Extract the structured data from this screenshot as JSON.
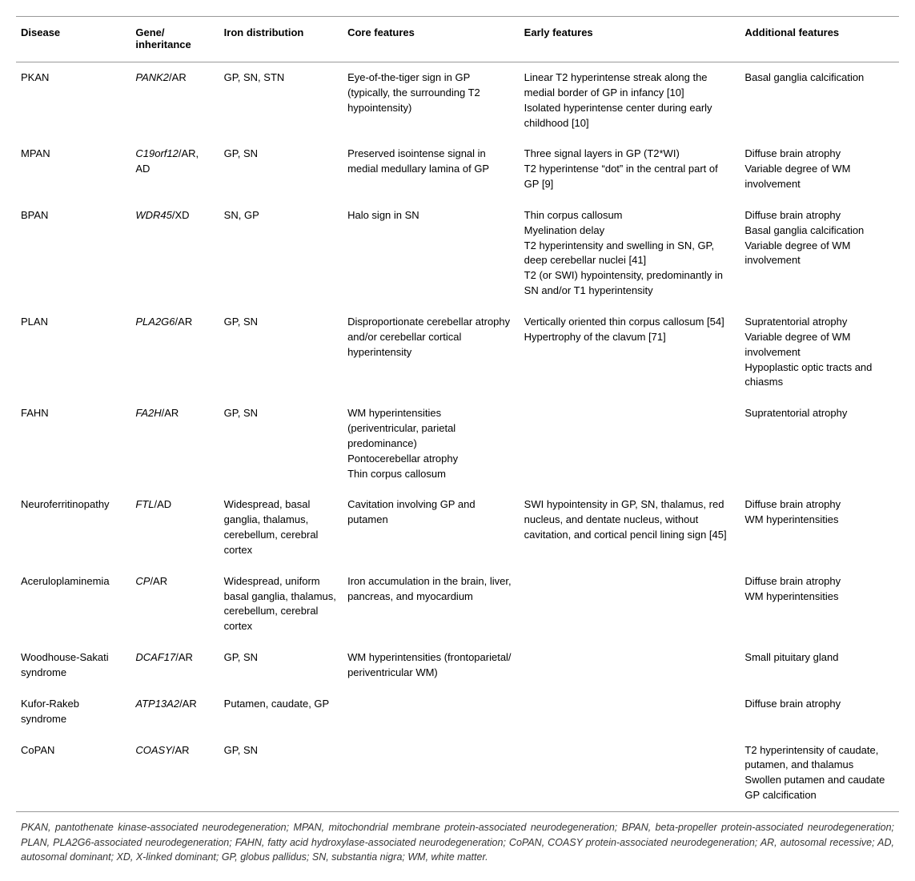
{
  "columns": [
    "Disease",
    "Gene/\ninheritance",
    "Iron distribution",
    "Core features",
    "Early features",
    "Additional features"
  ],
  "rows": [
    {
      "disease": "PKAN",
      "gene_html": "<i>PANK2</i>/AR",
      "iron": "GP, SN, STN",
      "core": "Eye-of-the-tiger sign in GP (typically, the surrounding T2 hypointensity)",
      "early": "Linear T2 hyperintense streak along the medial border of GP in infancy [10]\nIsolated hyperintense center during early childhood [10]",
      "additional": "Basal ganglia calcification"
    },
    {
      "disease": "MPAN",
      "gene_html": "<i>C19orf12</i>/AR, AD",
      "iron": "GP, SN",
      "core": "Preserved isointense signal in medial medullary lamina of GP",
      "early": "Three signal layers in GP (T2*WI)\nT2 hyperintense “dot” in the central part of GP [9]",
      "additional": "Diffuse brain atrophy\nVariable degree of WM involvement"
    },
    {
      "disease": "BPAN",
      "gene_html": "<i>WDR45</i>/XD",
      "iron": "SN, GP",
      "core": "Halo sign in SN",
      "early": "Thin corpus callosum\nMyelination delay\nT2 hyperintensity and swelling in SN, GP, deep cerebellar nuclei [41]\nT2 (or SWI) hypointensity, predominantly in SN and/or T1 hyperintensity",
      "additional": "Diffuse brain atrophy\nBasal ganglia calcification\nVariable degree of WM involvement"
    },
    {
      "disease": "PLAN",
      "gene_html": "<i>PLA2G6</i>/AR",
      "iron": "GP, SN",
      "core": "Disproportionate cerebellar atrophy and/or cerebellar cortical hyperintensity",
      "early": "Vertically oriented thin corpus callosum [54]\nHypertrophy of the clavum [71]",
      "additional": "Supratentorial atrophy\nVariable degree of WM involvement\nHypoplastic optic tracts and chiasms"
    },
    {
      "disease": "FAHN",
      "gene_html": "<i>FA2H</i>/AR",
      "iron": "GP, SN",
      "core": "WM hyperintensities (periventricular, parietal predominance)\nPontocerebellar atrophy\nThin corpus callosum",
      "early": "",
      "additional": "Supratentorial atrophy"
    },
    {
      "disease": "Neuroferritinopathy",
      "gene_html": "<i>FTL</i>/AD",
      "iron": "Widespread, basal ganglia, thalamus, cerebellum, cerebral cortex",
      "core": "Cavitation involving GP and putamen",
      "early": "SWI hypointensity in GP, SN, thalamus, red nucleus, and dentate nucleus, without cavitation, and cortical pencil lining sign [45]",
      "additional": "Diffuse brain atrophy\nWM hyperintensities"
    },
    {
      "disease": "Aceruloplaminemia",
      "gene_html": "<i>CP</i>/AR",
      "iron": "Widespread, uniform basal ganglia, thalamus, cerebellum, cerebral cortex",
      "core": "Iron accumulation in the brain, liver, pancreas, and myocardium",
      "early": "",
      "additional": "Diffuse brain atrophy\nWM hyperintensities"
    },
    {
      "disease": "Woodhouse-Sakati syndrome",
      "gene_html": "<i>DCAF17</i>/AR",
      "iron": "GP, SN",
      "core": "WM hyperintensities (frontoparietal/ periventricular WM)",
      "early": "",
      "additional": "Small pituitary gland"
    },
    {
      "disease": "Kufor-Rakeb syndrome",
      "gene_html": "<i>ATP13A2</i>/AR",
      "iron": "Putamen, caudate, GP",
      "core": "",
      "early": "",
      "additional": "Diffuse brain atrophy"
    },
    {
      "disease": "CoPAN",
      "gene_html": "<i>COASY</i>/AR",
      "iron": "GP, SN",
      "core": "",
      "early": "",
      "additional": "T2 hyperintensity of caudate, putamen, and thalamus\nSwollen putamen and caudate\nGP calcification"
    }
  ],
  "footnote": "PKAN, pantothenate kinase-associated neurodegeneration; MPAN, mitochondrial membrane protein-associated neurodegeneration; BPAN, beta-propeller protein-associated neurodegeneration; PLAN, PLA2G6-associated neurodegeneration; FAHN, fatty acid hydroxylase-associated neurodegeneration; CoPAN, COASY protein-associated neurodegeneration; AR, autosomal recessive; AD, autosomal dominant; XD, X-linked dominant; GP, globus pallidus; SN, substantia nigra; WM, white matter.",
  "col_classes": [
    "col-disease",
    "col-gene",
    "col-iron",
    "col-core",
    "col-early",
    "col-add"
  ]
}
